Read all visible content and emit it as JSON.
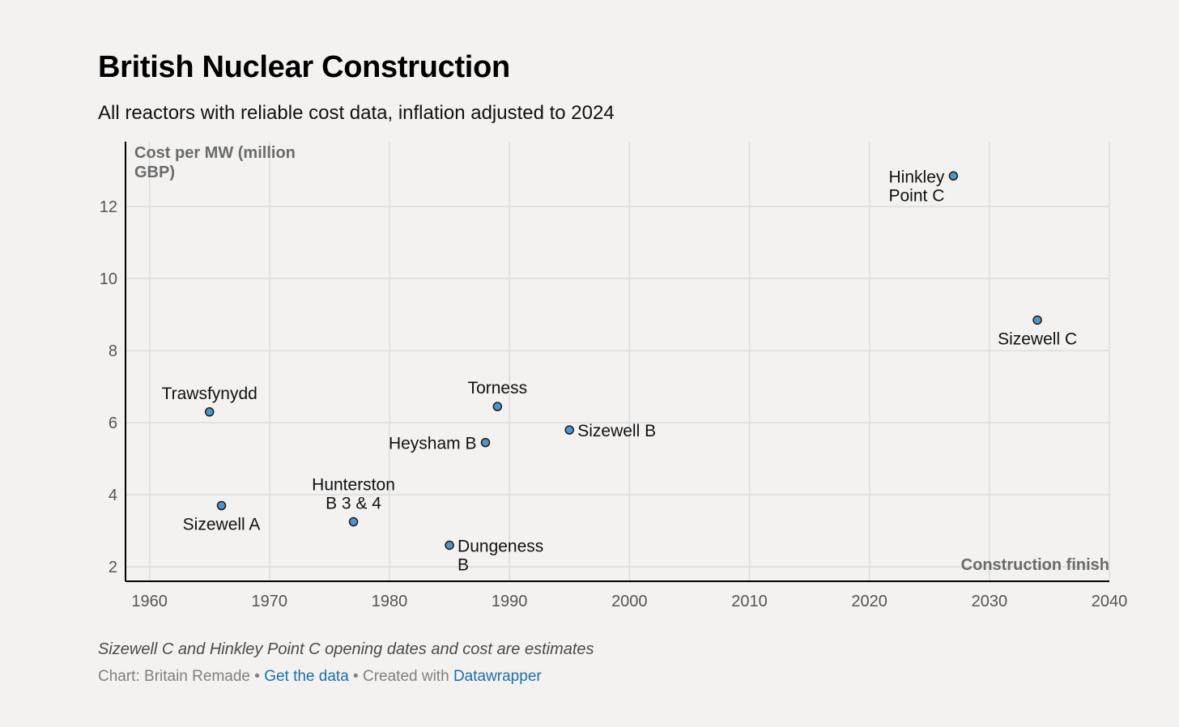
{
  "header": {
    "title": "British Nuclear Construction",
    "subtitle": "All reactors with reliable cost data, inflation adjusted to 2024"
  },
  "footer": {
    "note": "Sizewell C and Hinkley Point C opening dates and cost are estimates",
    "source_prefix": "Chart: Britain Remade",
    "separator": "•",
    "get_data_label": "Get the data",
    "created_with_prefix": "Created with",
    "tool_label": "Datawrapper"
  },
  "colors": {
    "point_fill": "#4f95c9",
    "point_stroke": "#1a1a1a",
    "grid": "#dcdcdc",
    "axis": "#000000",
    "axis_label": "#6b6b6b",
    "tick_label": "#555555",
    "link": "#1d6fa8"
  },
  "chart_data": {
    "type": "scatter",
    "title": "British Nuclear Construction",
    "subtitle": "All reactors with reliable cost data, inflation adjusted to 2024",
    "xlabel": "Construction finish",
    "ylabel": "Cost per MW (million GBP)",
    "xlim": [
      1958,
      2040
    ],
    "ylim": [
      1.6,
      13.8
    ],
    "x_ticks": [
      1960,
      1970,
      1980,
      1990,
      2000,
      2010,
      2020,
      2030,
      2040
    ],
    "y_ticks": [
      2,
      4,
      6,
      8,
      10,
      12
    ],
    "grid": true,
    "legend": "none",
    "points": [
      {
        "label": "Trawsfynydd",
        "x": 1965,
        "y": 6.3,
        "label_lines": [
          "Trawsfynydd"
        ],
        "label_pos": "above"
      },
      {
        "label": "Sizewell A",
        "x": 1966,
        "y": 3.7,
        "label_lines": [
          "Sizewell A"
        ],
        "label_pos": "below"
      },
      {
        "label": "Hunterston B 3 & 4",
        "x": 1977,
        "y": 3.25,
        "label_lines": [
          "Hunterston",
          "B 3 & 4"
        ],
        "label_pos": "above"
      },
      {
        "label": "Dungeness B",
        "x": 1985,
        "y": 2.6,
        "label_lines": [
          "Dungeness",
          "B"
        ],
        "label_pos": "right"
      },
      {
        "label": "Heysham B",
        "x": 1988,
        "y": 5.45,
        "label_lines": [
          "Heysham B"
        ],
        "label_pos": "left"
      },
      {
        "label": "Torness",
        "x": 1989,
        "y": 6.45,
        "label_lines": [
          "Torness"
        ],
        "label_pos": "above"
      },
      {
        "label": "Sizewell B",
        "x": 1995,
        "y": 5.8,
        "label_lines": [
          "Sizewell B"
        ],
        "label_pos": "right"
      },
      {
        "label": "Hinkley Point C",
        "x": 2027,
        "y": 12.85,
        "label_lines": [
          "Hinkley",
          "Point C"
        ],
        "label_pos": "left"
      },
      {
        "label": "Sizewell C",
        "x": 2034,
        "y": 8.85,
        "label_lines": [
          "Sizewell C"
        ],
        "label_pos": "below"
      }
    ],
    "notes": [
      "Sizewell C and Hinkley Point C opening dates and cost are estimates"
    ]
  }
}
